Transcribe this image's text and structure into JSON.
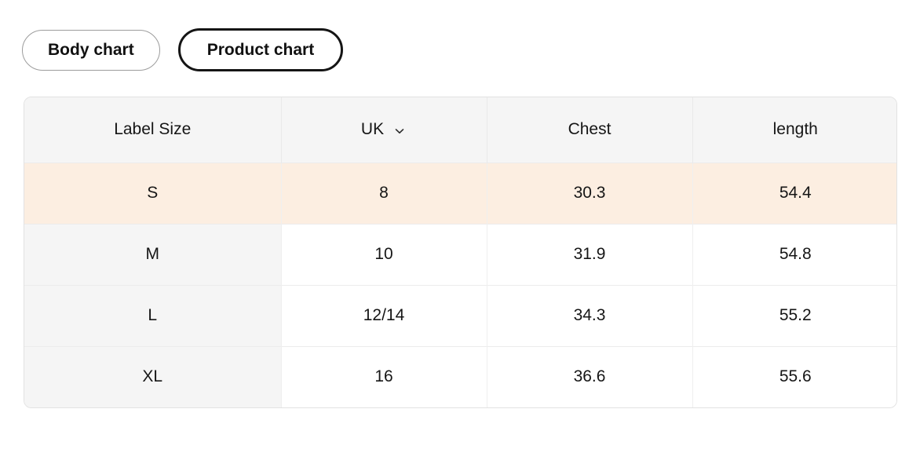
{
  "tabs": [
    {
      "label": "Body chart",
      "selected": false
    },
    {
      "label": "Product chart",
      "selected": true
    }
  ],
  "table": {
    "columns": [
      {
        "label": "Label Size",
        "has_dropdown": false
      },
      {
        "label": "UK",
        "has_dropdown": true
      },
      {
        "label": "Chest",
        "has_dropdown": false
      },
      {
        "label": "length",
        "has_dropdown": false
      }
    ],
    "rows": [
      {
        "label_size": "S",
        "uk": "8",
        "chest": "30.3",
        "length": "54.4",
        "highlighted": true
      },
      {
        "label_size": "M",
        "uk": "10",
        "chest": "31.9",
        "length": "54.8",
        "highlighted": false
      },
      {
        "label_size": "L",
        "uk": "12/14",
        "chest": "34.3",
        "length": "55.2",
        "highlighted": false
      },
      {
        "label_size": "XL",
        "uk": "16",
        "chest": "36.6",
        "length": "55.6",
        "highlighted": false
      }
    ]
  },
  "icons": {
    "uk_dropdown": "chevron-down-icon"
  },
  "colors": {
    "highlight_row": "#fceee1",
    "header_bg": "#f5f5f5",
    "table_border": "#e2e2e2",
    "chip_selected_border": "#151515",
    "chip_unselected_border": "#9c9c9c",
    "text": "#161616"
  }
}
